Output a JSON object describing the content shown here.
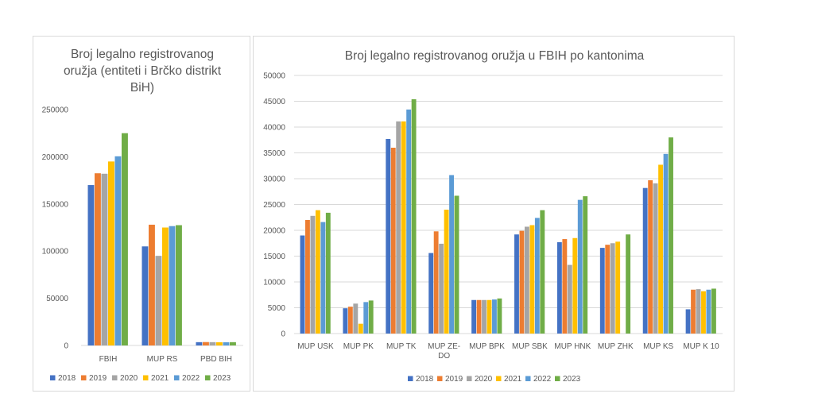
{
  "colors": {
    "series": [
      "#4472c4",
      "#ed7d31",
      "#a5a5a5",
      "#ffc000",
      "#5b9bd5",
      "#70ad47"
    ],
    "gridline": "#d9d9d9",
    "text": "#595959"
  },
  "chart_data": [
    {
      "type": "bar",
      "title": "Broj legalno registrovanog oružja (entiteti i Brčko distrikt BiH)",
      "categories": [
        "FBIH",
        "MUP RS",
        "PBD BIH"
      ],
      "ylim": [
        0,
        250000
      ],
      "yticks": [
        0,
        50000,
        100000,
        150000,
        200000,
        250000
      ],
      "ytick_labels": [
        "0",
        "50000",
        "100000",
        "150000",
        "200000",
        "250000"
      ],
      "grid": false,
      "legend": "bottom",
      "series": [
        {
          "name": "2018",
          "values": [
            170000,
            105000,
            3500
          ]
        },
        {
          "name": "2019",
          "values": [
            182500,
            128000,
            3600
          ]
        },
        {
          "name": "2020",
          "values": [
            182000,
            95000,
            3500
          ]
        },
        {
          "name": "2021",
          "values": [
            195000,
            125000,
            3400
          ]
        },
        {
          "name": "2022",
          "values": [
            200500,
            126500,
            3400
          ]
        },
        {
          "name": "2023",
          "values": [
            225000,
            127500,
            3500
          ]
        }
      ]
    },
    {
      "type": "bar",
      "title": "Broj legalno registrovanog oružja u FBIH po kantonima",
      "categories": [
        "MUP USK",
        "MUP PK",
        "MUP TK",
        "MUP ZE-DO",
        "MUP BPK",
        "MUP SBK",
        "MUP HNK",
        "MUP ZHK",
        "MUP KS",
        "MUP K 10"
      ],
      "category_lines": [
        [
          "MUP USK"
        ],
        [
          "MUP PK"
        ],
        [
          "MUP TK"
        ],
        [
          "MUP ZE-",
          "DO"
        ],
        [
          "MUP BPK"
        ],
        [
          "MUP SBK"
        ],
        [
          "MUP HNK"
        ],
        [
          "MUP ZHK"
        ],
        [
          "MUP KS"
        ],
        [
          "MUP K 10"
        ]
      ],
      "ylim": [
        0,
        50000
      ],
      "yticks": [
        0,
        5000,
        10000,
        15000,
        20000,
        25000,
        30000,
        35000,
        40000,
        45000,
        50000
      ],
      "ytick_labels": [
        "0",
        "5000",
        "10000",
        "15000",
        "20000",
        "25000",
        "30000",
        "35000",
        "40000",
        "45000",
        "50000"
      ],
      "grid": true,
      "legend": "bottom",
      "series": [
        {
          "name": "2018",
          "values": [
            19000,
            4900,
            37700,
            15600,
            6500,
            19200,
            17700,
            16600,
            28200,
            4700
          ]
        },
        {
          "name": "2019",
          "values": [
            22000,
            5200,
            36000,
            19800,
            6500,
            19900,
            18300,
            17200,
            29700,
            8500
          ]
        },
        {
          "name": "2020",
          "values": [
            22800,
            5800,
            41100,
            17400,
            6500,
            20700,
            13300,
            17500,
            29100,
            8600
          ]
        },
        {
          "name": "2021",
          "values": [
            23900,
            1900,
            41100,
            24000,
            6500,
            21000,
            18500,
            17800,
            32700,
            8200
          ]
        },
        {
          "name": "2022",
          "values": [
            21600,
            6100,
            43400,
            30700,
            6600,
            22400,
            25900,
            0,
            34800,
            8500
          ]
        },
        {
          "name": "2023",
          "values": [
            23400,
            6400,
            45400,
            26700,
            6800,
            23900,
            26600,
            19200,
            38000,
            8700
          ]
        }
      ]
    }
  ]
}
